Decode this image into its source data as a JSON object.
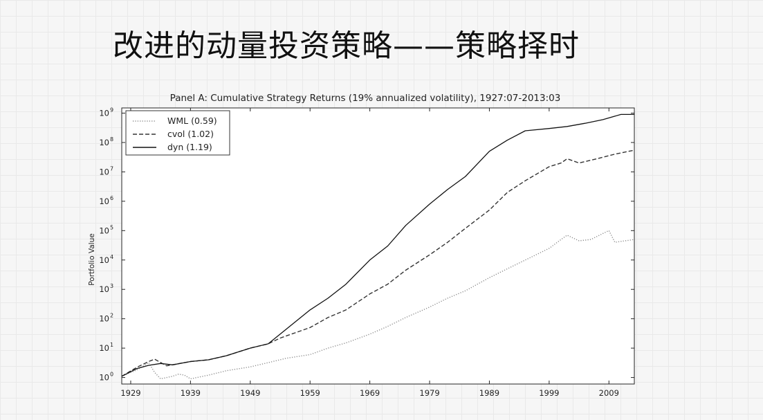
{
  "slide": {
    "title": "改进的动量投资策略——策略择时"
  },
  "chart_data": {
    "type": "line",
    "title": "Panel A: Cumulative Strategy Returns (19% annualized volatility), 1927:07-2013:03",
    "ylabel": "Portfolio Value",
    "xlabel": "",
    "y_scale": "log",
    "xlim": [
      1927.5,
      2013.25
    ],
    "ylim": [
      0.6,
      1500000000
    ],
    "x_ticks": [
      1929,
      1939,
      1949,
      1959,
      1969,
      1979,
      1989,
      1999,
      2009
    ],
    "y_ticks": [
      1,
      10,
      100,
      1000,
      10000,
      100000,
      1000000,
      10000000,
      100000000,
      1000000000
    ],
    "y_tick_exponents": [
      "0",
      "1",
      "2",
      "3",
      "4",
      "5",
      "6",
      "7",
      "8",
      "9"
    ],
    "y_tick_base": "10",
    "grid": false,
    "legend_position": "top-left",
    "series": [
      {
        "name": "WML (0.59)",
        "style": "dotted",
        "x": [
          1927.5,
          1930,
          1932,
          1933,
          1934,
          1936,
          1937,
          1938,
          1939,
          1942,
          1945,
          1949,
          1952,
          1955,
          1959,
          1962,
          1965,
          1969,
          1972,
          1975,
          1979,
          1982,
          1985,
          1989,
          1992,
          1995,
          1999,
          2001,
          2002,
          2004,
          2006,
          2008,
          2009,
          2010,
          2013.25
        ],
        "y": [
          1.1,
          1.8,
          3.2,
          1.5,
          0.9,
          1.1,
          1.3,
          1.2,
          0.9,
          1.2,
          1.7,
          2.3,
          3.2,
          4.5,
          6,
          10,
          15,
          30,
          55,
          110,
          250,
          500,
          900,
          2500,
          5000,
          10000,
          25000,
          50000,
          70000,
          45000,
          50000,
          80000,
          100000,
          40000,
          50000
        ]
      },
      {
        "name": "cvol (1.02)",
        "style": "dashed",
        "x": [
          1927.5,
          1930,
          1932,
          1933,
          1935,
          1939,
          1942,
          1945,
          1949,
          1952,
          1954,
          1959,
          1962,
          1965,
          1969,
          1972,
          1975,
          1979,
          1982,
          1985,
          1989,
          1992,
          1995,
          1999,
          2001,
          2002,
          2004,
          2007,
          2010,
          2013.25
        ],
        "y": [
          1.1,
          2.2,
          3.5,
          4.2,
          2.5,
          3.5,
          4,
          5.5,
          10,
          14,
          22,
          50,
          110,
          200,
          700,
          1500,
          4500,
          15000,
          40000,
          120000,
          500000,
          2000000,
          5000000,
          15000000,
          20000000,
          28000000,
          20000000,
          28000000,
          40000000,
          55000000
        ]
      },
      {
        "name": "dyn (1.19)",
        "style": "solid",
        "x": [
          1927.5,
          1930,
          1932,
          1934,
          1936,
          1939,
          1942,
          1945,
          1949,
          1952,
          1954,
          1959,
          1962,
          1965,
          1969,
          1972,
          1975,
          1979,
          1982,
          1985,
          1989,
          1992,
          1995,
          1999,
          2002,
          2005,
          2008,
          2011,
          2013.25
        ],
        "y": [
          1.1,
          2,
          2.6,
          3,
          2.7,
          3.5,
          4,
          5.5,
          10,
          14,
          30,
          200,
          500,
          1500,
          10000,
          30000,
          150000,
          800000,
          2500000,
          7000000,
          50000000,
          120000000,
          250000000,
          300000000,
          350000000,
          450000000,
          600000000,
          900000000,
          900000000
        ]
      }
    ]
  }
}
